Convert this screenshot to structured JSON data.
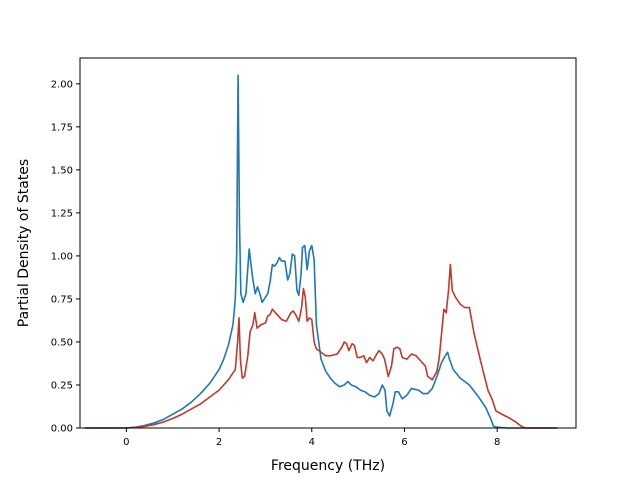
{
  "chart_data": {
    "type": "line",
    "title": "",
    "xlabel": "Frequency (THz)",
    "ylabel": "Partial Density of States",
    "xlim": [
      -1.0,
      9.7
    ],
    "ylim": [
      0.0,
      2.15
    ],
    "xticks": [
      0,
      2,
      4,
      6,
      8
    ],
    "xtick_labels": [
      "0",
      "2",
      "4",
      "6",
      "8"
    ],
    "yticks": [
      0.0,
      0.25,
      0.5,
      0.75,
      1.0,
      1.25,
      1.5,
      1.75,
      2.0
    ],
    "ytick_labels": [
      "0.00",
      "0.25",
      "0.50",
      "0.75",
      "1.00",
      "1.25",
      "1.50",
      "1.75",
      "2.00"
    ],
    "grid": false,
    "series": [
      {
        "color": "#1f77b4",
        "points": [
          [
            -0.9,
            0.0
          ],
          [
            0.0,
            0.0
          ],
          [
            0.2,
            0.005
          ],
          [
            0.4,
            0.015
          ],
          [
            0.6,
            0.03
          ],
          [
            0.8,
            0.05
          ],
          [
            1.0,
            0.08
          ],
          [
            1.2,
            0.11
          ],
          [
            1.4,
            0.15
          ],
          [
            1.6,
            0.2
          ],
          [
            1.8,
            0.26
          ],
          [
            2.0,
            0.34
          ],
          [
            2.1,
            0.4
          ],
          [
            2.2,
            0.48
          ],
          [
            2.3,
            0.6
          ],
          [
            2.35,
            0.75
          ],
          [
            2.38,
            1.0
          ],
          [
            2.41,
            2.05
          ],
          [
            2.44,
            1.2
          ],
          [
            2.47,
            0.78
          ],
          [
            2.52,
            0.73
          ],
          [
            2.58,
            0.78
          ],
          [
            2.65,
            1.04
          ],
          [
            2.72,
            0.88
          ],
          [
            2.78,
            0.78
          ],
          [
            2.83,
            0.82
          ],
          [
            2.88,
            0.78
          ],
          [
            2.93,
            0.73
          ],
          [
            3.0,
            0.76
          ],
          [
            3.05,
            0.78
          ],
          [
            3.1,
            0.85
          ],
          [
            3.15,
            0.95
          ],
          [
            3.2,
            0.94
          ],
          [
            3.25,
            0.96
          ],
          [
            3.3,
            0.99
          ],
          [
            3.35,
            0.97
          ],
          [
            3.42,
            0.97
          ],
          [
            3.48,
            0.86
          ],
          [
            3.53,
            0.9
          ],
          [
            3.58,
            1.01
          ],
          [
            3.63,
            1.0
          ],
          [
            3.68,
            0.8
          ],
          [
            3.72,
            0.77
          ],
          [
            3.77,
            0.9
          ],
          [
            3.8,
            1.05
          ],
          [
            3.85,
            1.06
          ],
          [
            3.9,
            0.92
          ],
          [
            3.95,
            1.03
          ],
          [
            4.0,
            1.06
          ],
          [
            4.05,
            0.98
          ],
          [
            4.1,
            0.6
          ],
          [
            4.2,
            0.4
          ],
          [
            4.3,
            0.33
          ],
          [
            4.4,
            0.29
          ],
          [
            4.5,
            0.26
          ],
          [
            4.6,
            0.24
          ],
          [
            4.7,
            0.25
          ],
          [
            4.78,
            0.27
          ],
          [
            4.85,
            0.25
          ],
          [
            4.95,
            0.24
          ],
          [
            5.05,
            0.22
          ],
          [
            5.15,
            0.21
          ],
          [
            5.25,
            0.19
          ],
          [
            5.35,
            0.18
          ],
          [
            5.45,
            0.2
          ],
          [
            5.52,
            0.25
          ],
          [
            5.58,
            0.22
          ],
          [
            5.62,
            0.1
          ],
          [
            5.68,
            0.07
          ],
          [
            5.75,
            0.14
          ],
          [
            5.8,
            0.21
          ],
          [
            5.87,
            0.21
          ],
          [
            5.95,
            0.17
          ],
          [
            6.05,
            0.19
          ],
          [
            6.15,
            0.23
          ],
          [
            6.3,
            0.22
          ],
          [
            6.4,
            0.2
          ],
          [
            6.5,
            0.2
          ],
          [
            6.6,
            0.23
          ],
          [
            6.7,
            0.3
          ],
          [
            6.8,
            0.38
          ],
          [
            6.88,
            0.42
          ],
          [
            6.93,
            0.44
          ],
          [
            6.97,
            0.4
          ],
          [
            7.05,
            0.34
          ],
          [
            7.2,
            0.29
          ],
          [
            7.4,
            0.25
          ],
          [
            7.6,
            0.18
          ],
          [
            7.75,
            0.12
          ],
          [
            7.85,
            0.06
          ],
          [
            7.92,
            0.01
          ],
          [
            8.0,
            0.005
          ],
          [
            8.2,
            0.0
          ],
          [
            9.3,
            0.0
          ]
        ]
      },
      {
        "color": "#c0392b",
        "points": [
          [
            -0.9,
            0.0
          ],
          [
            0.0,
            0.0
          ],
          [
            0.2,
            0.003
          ],
          [
            0.4,
            0.01
          ],
          [
            0.6,
            0.02
          ],
          [
            0.8,
            0.035
          ],
          [
            1.0,
            0.055
          ],
          [
            1.2,
            0.08
          ],
          [
            1.4,
            0.11
          ],
          [
            1.6,
            0.14
          ],
          [
            1.8,
            0.18
          ],
          [
            2.0,
            0.22
          ],
          [
            2.2,
            0.28
          ],
          [
            2.35,
            0.34
          ],
          [
            2.4,
            0.5
          ],
          [
            2.43,
            0.64
          ],
          [
            2.46,
            0.4
          ],
          [
            2.5,
            0.29
          ],
          [
            2.55,
            0.3
          ],
          [
            2.62,
            0.42
          ],
          [
            2.67,
            0.56
          ],
          [
            2.73,
            0.6
          ],
          [
            2.77,
            0.67
          ],
          [
            2.82,
            0.58
          ],
          [
            2.9,
            0.6
          ],
          [
            3.0,
            0.61
          ],
          [
            3.05,
            0.65
          ],
          [
            3.1,
            0.66
          ],
          [
            3.15,
            0.69
          ],
          [
            3.25,
            0.66
          ],
          [
            3.35,
            0.63
          ],
          [
            3.45,
            0.62
          ],
          [
            3.55,
            0.67
          ],
          [
            3.6,
            0.68
          ],
          [
            3.65,
            0.66
          ],
          [
            3.72,
            0.62
          ],
          [
            3.78,
            0.7
          ],
          [
            3.82,
            0.81
          ],
          [
            3.86,
            0.76
          ],
          [
            3.9,
            0.62
          ],
          [
            3.95,
            0.64
          ],
          [
            4.0,
            0.63
          ],
          [
            4.05,
            0.5
          ],
          [
            4.1,
            0.46
          ],
          [
            4.2,
            0.44
          ],
          [
            4.3,
            0.42
          ],
          [
            4.4,
            0.42
          ],
          [
            4.55,
            0.43
          ],
          [
            4.65,
            0.47
          ],
          [
            4.7,
            0.5
          ],
          [
            4.75,
            0.49
          ],
          [
            4.8,
            0.45
          ],
          [
            4.87,
            0.49
          ],
          [
            4.92,
            0.48
          ],
          [
            4.98,
            0.41
          ],
          [
            5.05,
            0.41
          ],
          [
            5.12,
            0.42
          ],
          [
            5.18,
            0.38
          ],
          [
            5.25,
            0.41
          ],
          [
            5.32,
            0.39
          ],
          [
            5.38,
            0.42
          ],
          [
            5.45,
            0.45
          ],
          [
            5.52,
            0.43
          ],
          [
            5.57,
            0.4
          ],
          [
            5.65,
            0.3
          ],
          [
            5.72,
            0.36
          ],
          [
            5.77,
            0.46
          ],
          [
            5.85,
            0.47
          ],
          [
            5.9,
            0.46
          ],
          [
            5.95,
            0.41
          ],
          [
            6.05,
            0.4
          ],
          [
            6.15,
            0.43
          ],
          [
            6.25,
            0.42
          ],
          [
            6.35,
            0.39
          ],
          [
            6.45,
            0.36
          ],
          [
            6.5,
            0.3
          ],
          [
            6.6,
            0.28
          ],
          [
            6.7,
            0.33
          ],
          [
            6.75,
            0.41
          ],
          [
            6.8,
            0.55
          ],
          [
            6.85,
            0.69
          ],
          [
            6.9,
            0.67
          ],
          [
            6.95,
            0.8
          ],
          [
            6.99,
            0.95
          ],
          [
            7.03,
            0.8
          ],
          [
            7.1,
            0.76
          ],
          [
            7.2,
            0.72
          ],
          [
            7.3,
            0.7
          ],
          [
            7.4,
            0.7
          ],
          [
            7.5,
            0.55
          ],
          [
            7.65,
            0.38
          ],
          [
            7.8,
            0.22
          ],
          [
            7.9,
            0.16
          ],
          [
            7.97,
            0.1
          ],
          [
            8.1,
            0.08
          ],
          [
            8.25,
            0.06
          ],
          [
            8.4,
            0.035
          ],
          [
            8.52,
            0.01
          ],
          [
            8.6,
            0.0
          ],
          [
            9.3,
            0.0
          ]
        ]
      }
    ]
  }
}
